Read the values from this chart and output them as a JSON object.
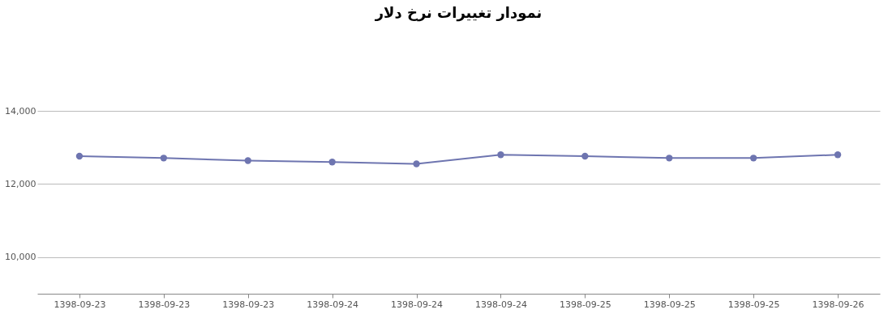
{
  "chart_data": {
    "type": "line",
    "title": "نمودار تغییرات نرخ دلار",
    "categories": [
      "1398-09-23",
      "1398-09-23",
      "1398-09-23",
      "1398-09-24",
      "1398-09-24",
      "1398-09-24",
      "1398-09-25",
      "1398-09-25",
      "1398-09-25",
      "1398-09-26"
    ],
    "series": [
      {
        "color": "#6e75b0",
        "values": [
          12760,
          12710,
          12640,
          12600,
          12550,
          12800,
          12760,
          12710,
          12710,
          12800
        ]
      }
    ],
    "ylim": [
      9000,
      14000
    ],
    "yticks": [
      {
        "value": 10000,
        "label": "10,000"
      },
      {
        "value": 12000,
        "label": "12,000"
      },
      {
        "value": 14000,
        "label": "14,000"
      }
    ],
    "grid": "y",
    "marker": "circle",
    "legend": false
  }
}
